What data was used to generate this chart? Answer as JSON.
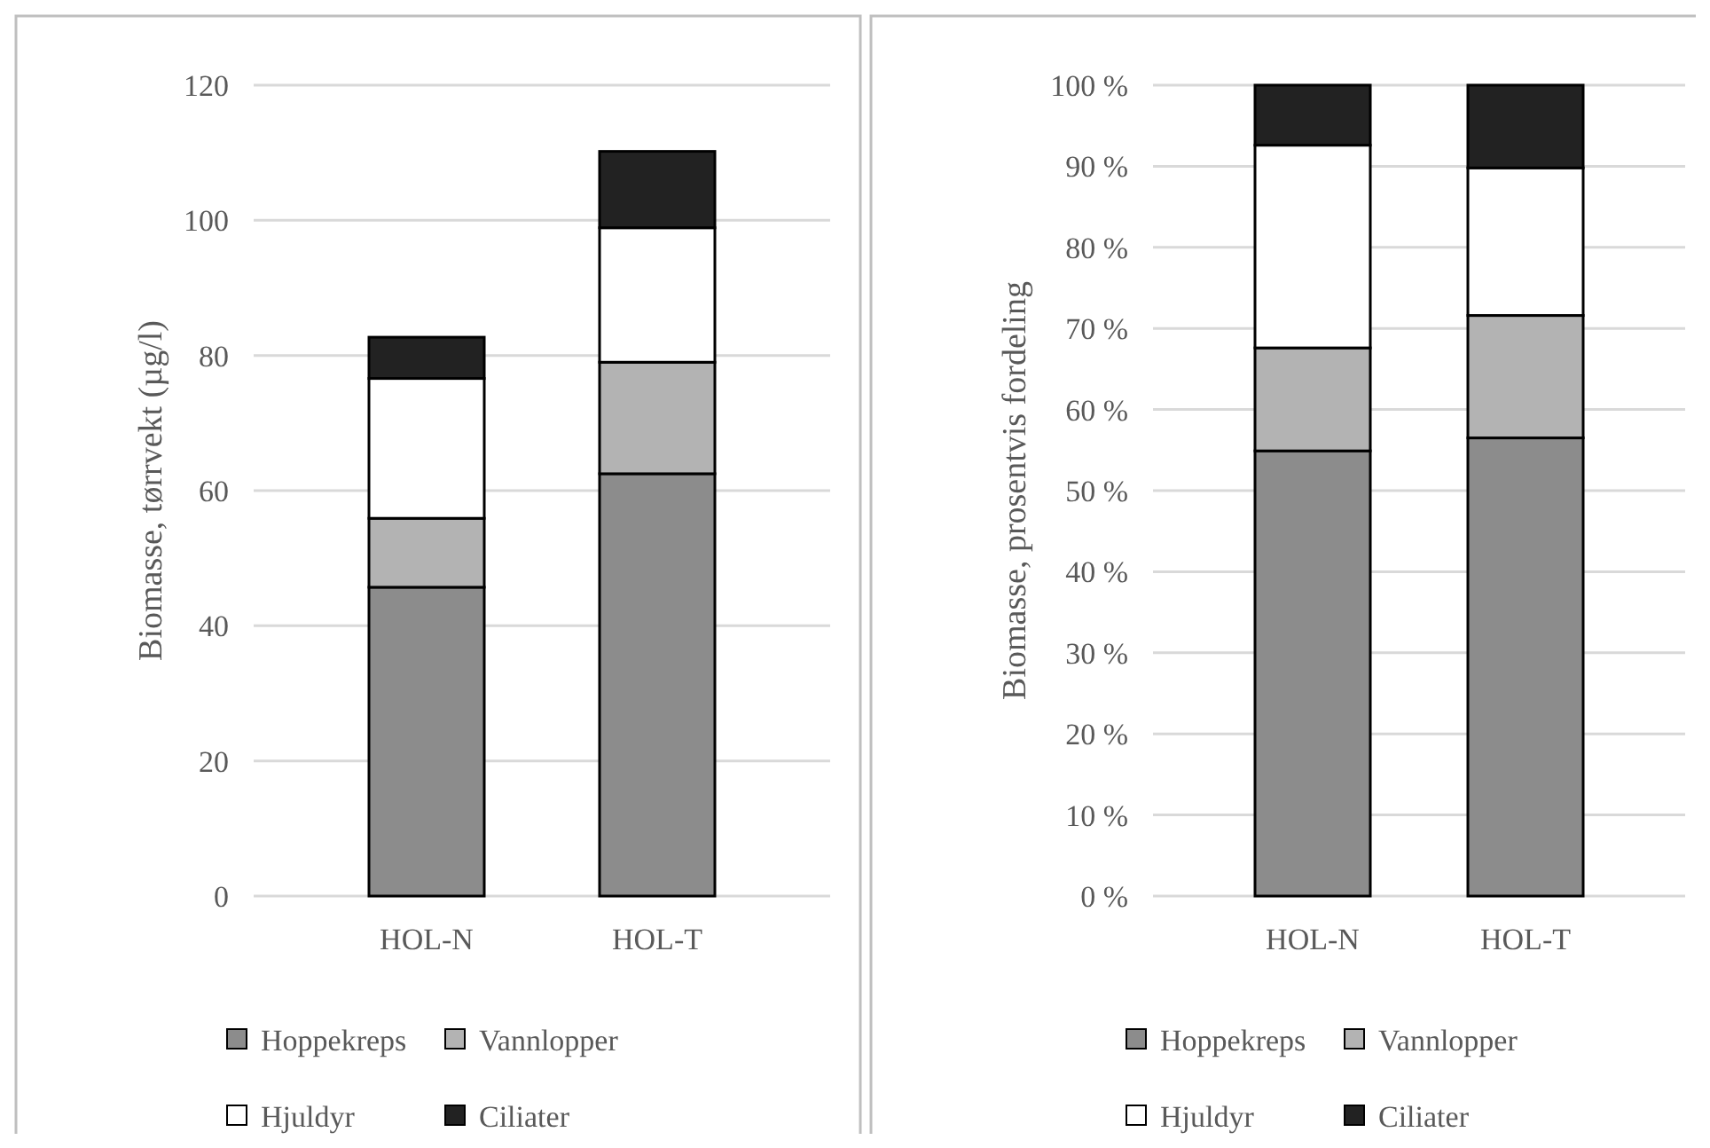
{
  "chart_data": [
    {
      "type": "bar",
      "stacked": true,
      "ylabel": "Biomasse, tørrvekt (µg/l)",
      "categories": [
        "HOL-N",
        "HOL-T"
      ],
      "ylim": [
        0,
        120
      ],
      "yticks": [
        0,
        20,
        40,
        60,
        80,
        100,
        120
      ],
      "grid": "y",
      "legend": "bottom",
      "series": [
        {
          "name": "Hoppekreps",
          "color": "#8c8c8c",
          "values": [
            45.7,
            62.5
          ]
        },
        {
          "name": "Vannlopper",
          "color": "#b3b3b3",
          "values": [
            10.2,
            16.5
          ]
        },
        {
          "name": "Hjuldyr",
          "color": "#ffffff",
          "values": [
            20.7,
            19.9
          ]
        },
        {
          "name": "Ciliater",
          "color": "#222222",
          "values": [
            6.1,
            11.3
          ]
        }
      ]
    },
    {
      "type": "bar",
      "stacked": true,
      "ylabel": "Biomasse, prosentvis fordeling",
      "categories": [
        "HOL-N",
        "HOL-T"
      ],
      "ylim": [
        0,
        100
      ],
      "yticks": [
        {
          "value": 0,
          "label": "0 %"
        },
        {
          "value": 10,
          "label": "10 %"
        },
        {
          "value": 20,
          "label": "20 %"
        },
        {
          "value": 30,
          "label": "30 %"
        },
        {
          "value": 40,
          "label": "40 %"
        },
        {
          "value": 50,
          "label": "50 %"
        },
        {
          "value": 60,
          "label": "60 %"
        },
        {
          "value": 70,
          "label": "70 %"
        },
        {
          "value": 80,
          "label": "80 %"
        },
        {
          "value": 90,
          "label": "90 %"
        },
        {
          "value": 100,
          "label": "100 %"
        }
      ],
      "grid": "y",
      "legend": "bottom",
      "series": [
        {
          "name": "Hoppekreps",
          "color": "#8c8c8c",
          "values": [
            54.9,
            56.5
          ]
        },
        {
          "name": "Vannlopper",
          "color": "#b3b3b3",
          "values": [
            12.7,
            15.1
          ]
        },
        {
          "name": "Hjuldyr",
          "color": "#ffffff",
          "values": [
            25.0,
            18.2
          ]
        },
        {
          "name": "Ciliater",
          "color": "#222222",
          "values": [
            7.4,
            10.2
          ]
        }
      ]
    }
  ]
}
